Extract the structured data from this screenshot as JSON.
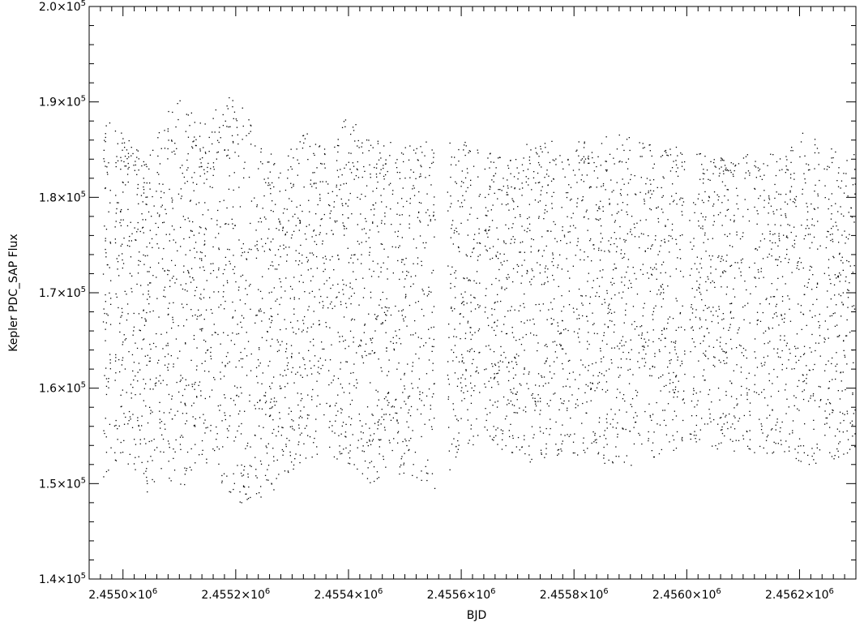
{
  "chart_data": {
    "type": "scatter",
    "xlabel": "BJD",
    "ylabel": "Kepler PDC_SAP Flux",
    "xlim": [
      2454940,
      2456300
    ],
    "ylim": [
      140000,
      200000
    ],
    "x_ticks": [
      {
        "value": 2455000,
        "mant": "2.4550",
        "exp": "6"
      },
      {
        "value": 2455200,
        "mant": "2.4552",
        "exp": "6"
      },
      {
        "value": 2455400,
        "mant": "2.4554",
        "exp": "6"
      },
      {
        "value": 2455600,
        "mant": "2.4556",
        "exp": "6"
      },
      {
        "value": 2455800,
        "mant": "2.4558",
        "exp": "6"
      },
      {
        "value": 2456000,
        "mant": "2.4560",
        "exp": "6"
      },
      {
        "value": 2456200,
        "mant": "2.4562",
        "exp": "6"
      }
    ],
    "y_ticks": [
      {
        "value": 140000,
        "mant": "1.4",
        "exp": "5"
      },
      {
        "value": 150000,
        "mant": "1.5",
        "exp": "5"
      },
      {
        "value": 160000,
        "mant": "1.6",
        "exp": "5"
      },
      {
        "value": 170000,
        "mant": "1.7",
        "exp": "5"
      },
      {
        "value": 180000,
        "mant": "1.8",
        "exp": "5"
      },
      {
        "value": 190000,
        "mant": "1.9",
        "exp": "5"
      },
      {
        "value": 200000,
        "mant": "2.0",
        "exp": "5"
      }
    ],
    "envelope": {
      "x": [
        2454960,
        2454975,
        2454990,
        2455010,
        2455040,
        2455070,
        2455100,
        2455130,
        2455160,
        2455200,
        2455240,
        2455280,
        2455320,
        2455360,
        2455400,
        2455440,
        2455480,
        2455520,
        2455560,
        2455600,
        2455640,
        2455680,
        2455720,
        2455760,
        2455800,
        2455840,
        2455880,
        2455920,
        2455960,
        2456000,
        2456040,
        2456080,
        2456120,
        2456160,
        2456200,
        2456240,
        2456280,
        2456300
      ],
      "upper": [
        185000,
        190000,
        188000,
        186000,
        184000,
        189000,
        191000,
        188000,
        190000,
        191000,
        186000,
        184000,
        187000,
        186000,
        189000,
        186000,
        186000,
        186000,
        186000,
        186000,
        185000,
        184000,
        186000,
        186000,
        186000,
        186000,
        187000,
        186000,
        186000,
        185000,
        184500,
        184000,
        185000,
        184500,
        187000,
        186000,
        185000,
        185000
      ],
      "lower": [
        150000,
        151000,
        152000,
        152000,
        149000,
        150000,
        149000,
        152000,
        151000,
        148000,
        148000,
        150000,
        152500,
        153000,
        152000,
        150000,
        151000,
        150000,
        149000,
        153500,
        154000,
        153000,
        152000,
        153000,
        153000,
        152500,
        151000,
        152500,
        153000,
        154000,
        153500,
        153500,
        153000,
        153000,
        152000,
        152000,
        153000,
        153000
      ]
    },
    "gaps": [
      {
        "start": 2454978,
        "end": 2454984
      },
      {
        "start": 2455228,
        "end": 2455232
      },
      {
        "start": 2455553,
        "end": 2455575
      },
      {
        "start": 2455633,
        "end": 2455640
      },
      {
        "start": 2455996,
        "end": 2456004
      },
      {
        "start": 2456112,
        "end": 2456118
      },
      {
        "start": 2456237,
        "end": 2456243
      }
    ],
    "grid": false,
    "legend": "none"
  }
}
